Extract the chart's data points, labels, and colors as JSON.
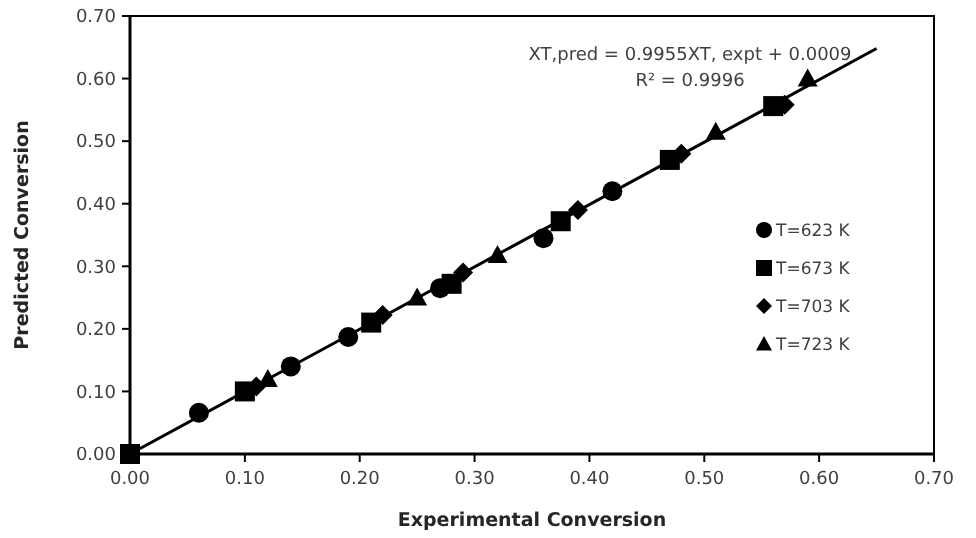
{
  "chart_data": {
    "type": "scatter",
    "xlabel": "Experimental Conversion",
    "ylabel": "Predicted Conversion",
    "xlim": [
      0,
      0.7
    ],
    "ylim": [
      0,
      0.7
    ],
    "xticks": [
      {
        "value": 0,
        "label": "0.00"
      },
      {
        "value": 0.1,
        "label": "0.10"
      },
      {
        "value": 0.2,
        "label": "0.20"
      },
      {
        "value": 0.3,
        "label": "0.30"
      },
      {
        "value": 0.4,
        "label": "0.40"
      },
      {
        "value": 0.5,
        "label": "0.50"
      },
      {
        "value": 0.6,
        "label": "0.60"
      },
      {
        "value": 0.7,
        "label": "0.70"
      }
    ],
    "yticks": [
      {
        "value": 0,
        "label": "0.00"
      },
      {
        "value": 0.1,
        "label": "0.10"
      },
      {
        "value": 0.2,
        "label": "0.20"
      },
      {
        "value": 0.3,
        "label": "0.30"
      },
      {
        "value": 0.4,
        "label": "0.40"
      },
      {
        "value": 0.5,
        "label": "0.50"
      },
      {
        "value": 0.6,
        "label": "0.60"
      },
      {
        "value": 0.7,
        "label": "0.70"
      }
    ],
    "grid": false,
    "legend": "right",
    "annotations": [
      "XT,pred = 0.9955XT, expt + 0.0009",
      "R² = 0.9996"
    ],
    "series": [
      {
        "type": "line",
        "color": "#000000",
        "x": [
          0,
          0.65
        ],
        "values": [
          0,
          0.648
        ],
        "marker": "none",
        "line_style": "solid"
      },
      {
        "name": "T=623 K",
        "color": "#000000",
        "marker": "circle",
        "x": [
          0.06,
          0.14,
          0.19,
          0.27,
          0.36,
          0.42
        ],
        "values": [
          0.066,
          0.14,
          0.187,
          0.265,
          0.345,
          0.42
        ]
      },
      {
        "name": "T=673 K",
        "color": "#000000",
        "marker": "square",
        "x": [
          0,
          0.1,
          0.21,
          0.28,
          0.375,
          0.47,
          0.56
        ],
        "values": [
          0,
          0.1,
          0.21,
          0.272,
          0.372,
          0.47,
          0.556
        ]
      },
      {
        "name": "T=703 K",
        "color": "#000000",
        "marker": "diamond",
        "x": [
          0.11,
          0.22,
          0.29,
          0.39,
          0.48,
          0.57
        ],
        "values": [
          0.108,
          0.222,
          0.29,
          0.39,
          0.48,
          0.558
        ]
      },
      {
        "name": "T=723 K",
        "color": "#000000",
        "marker": "triangle",
        "x": [
          0.12,
          0.25,
          0.32,
          0.51,
          0.59
        ],
        "values": [
          0.12,
          0.25,
          0.318,
          0.515,
          0.6
        ]
      }
    ]
  }
}
